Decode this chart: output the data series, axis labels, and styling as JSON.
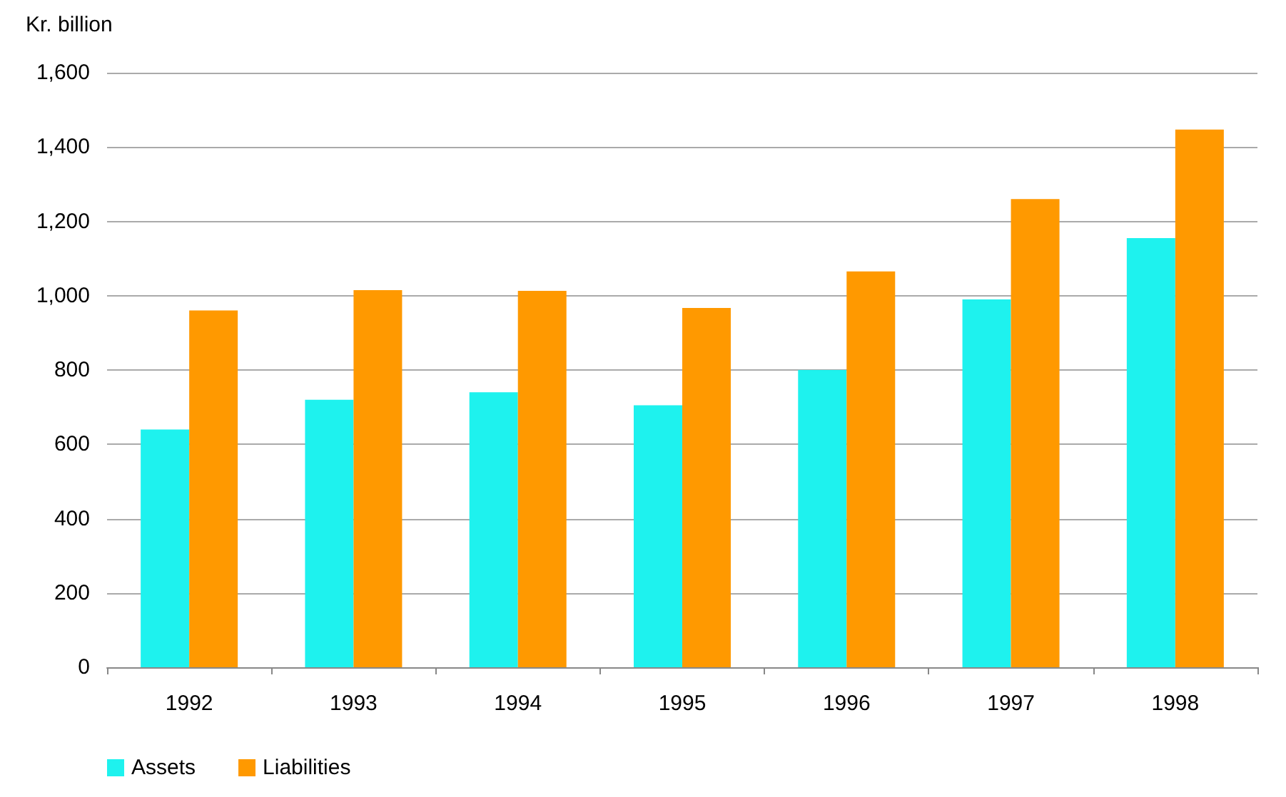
{
  "chart_data": {
    "type": "bar",
    "ylabel": "Kr. billion",
    "categories": [
      "1992",
      "1993",
      "1994",
      "1995",
      "1996",
      "1997",
      "1998"
    ],
    "series": [
      {
        "name": "Assets",
        "color": "#1ef2ee",
        "values": [
          640,
          720,
          740,
          705,
          800,
          990,
          1155
        ]
      },
      {
        "name": "Liabilities",
        "color": "#ff9900",
        "values": [
          960,
          1015,
          1013,
          967,
          1065,
          1260,
          1447
        ]
      }
    ],
    "ylim": [
      0,
      1600
    ],
    "yticks": [
      0,
      200,
      400,
      600,
      800,
      {
        "value": 1000,
        "label": "1,000"
      },
      {
        "value": 1200,
        "label": "1,200"
      },
      {
        "value": 1400,
        "label": "1,400"
      },
      {
        "value": 1600,
        "label": "1,600"
      }
    ],
    "grid": "y",
    "legend": "bottom left"
  }
}
